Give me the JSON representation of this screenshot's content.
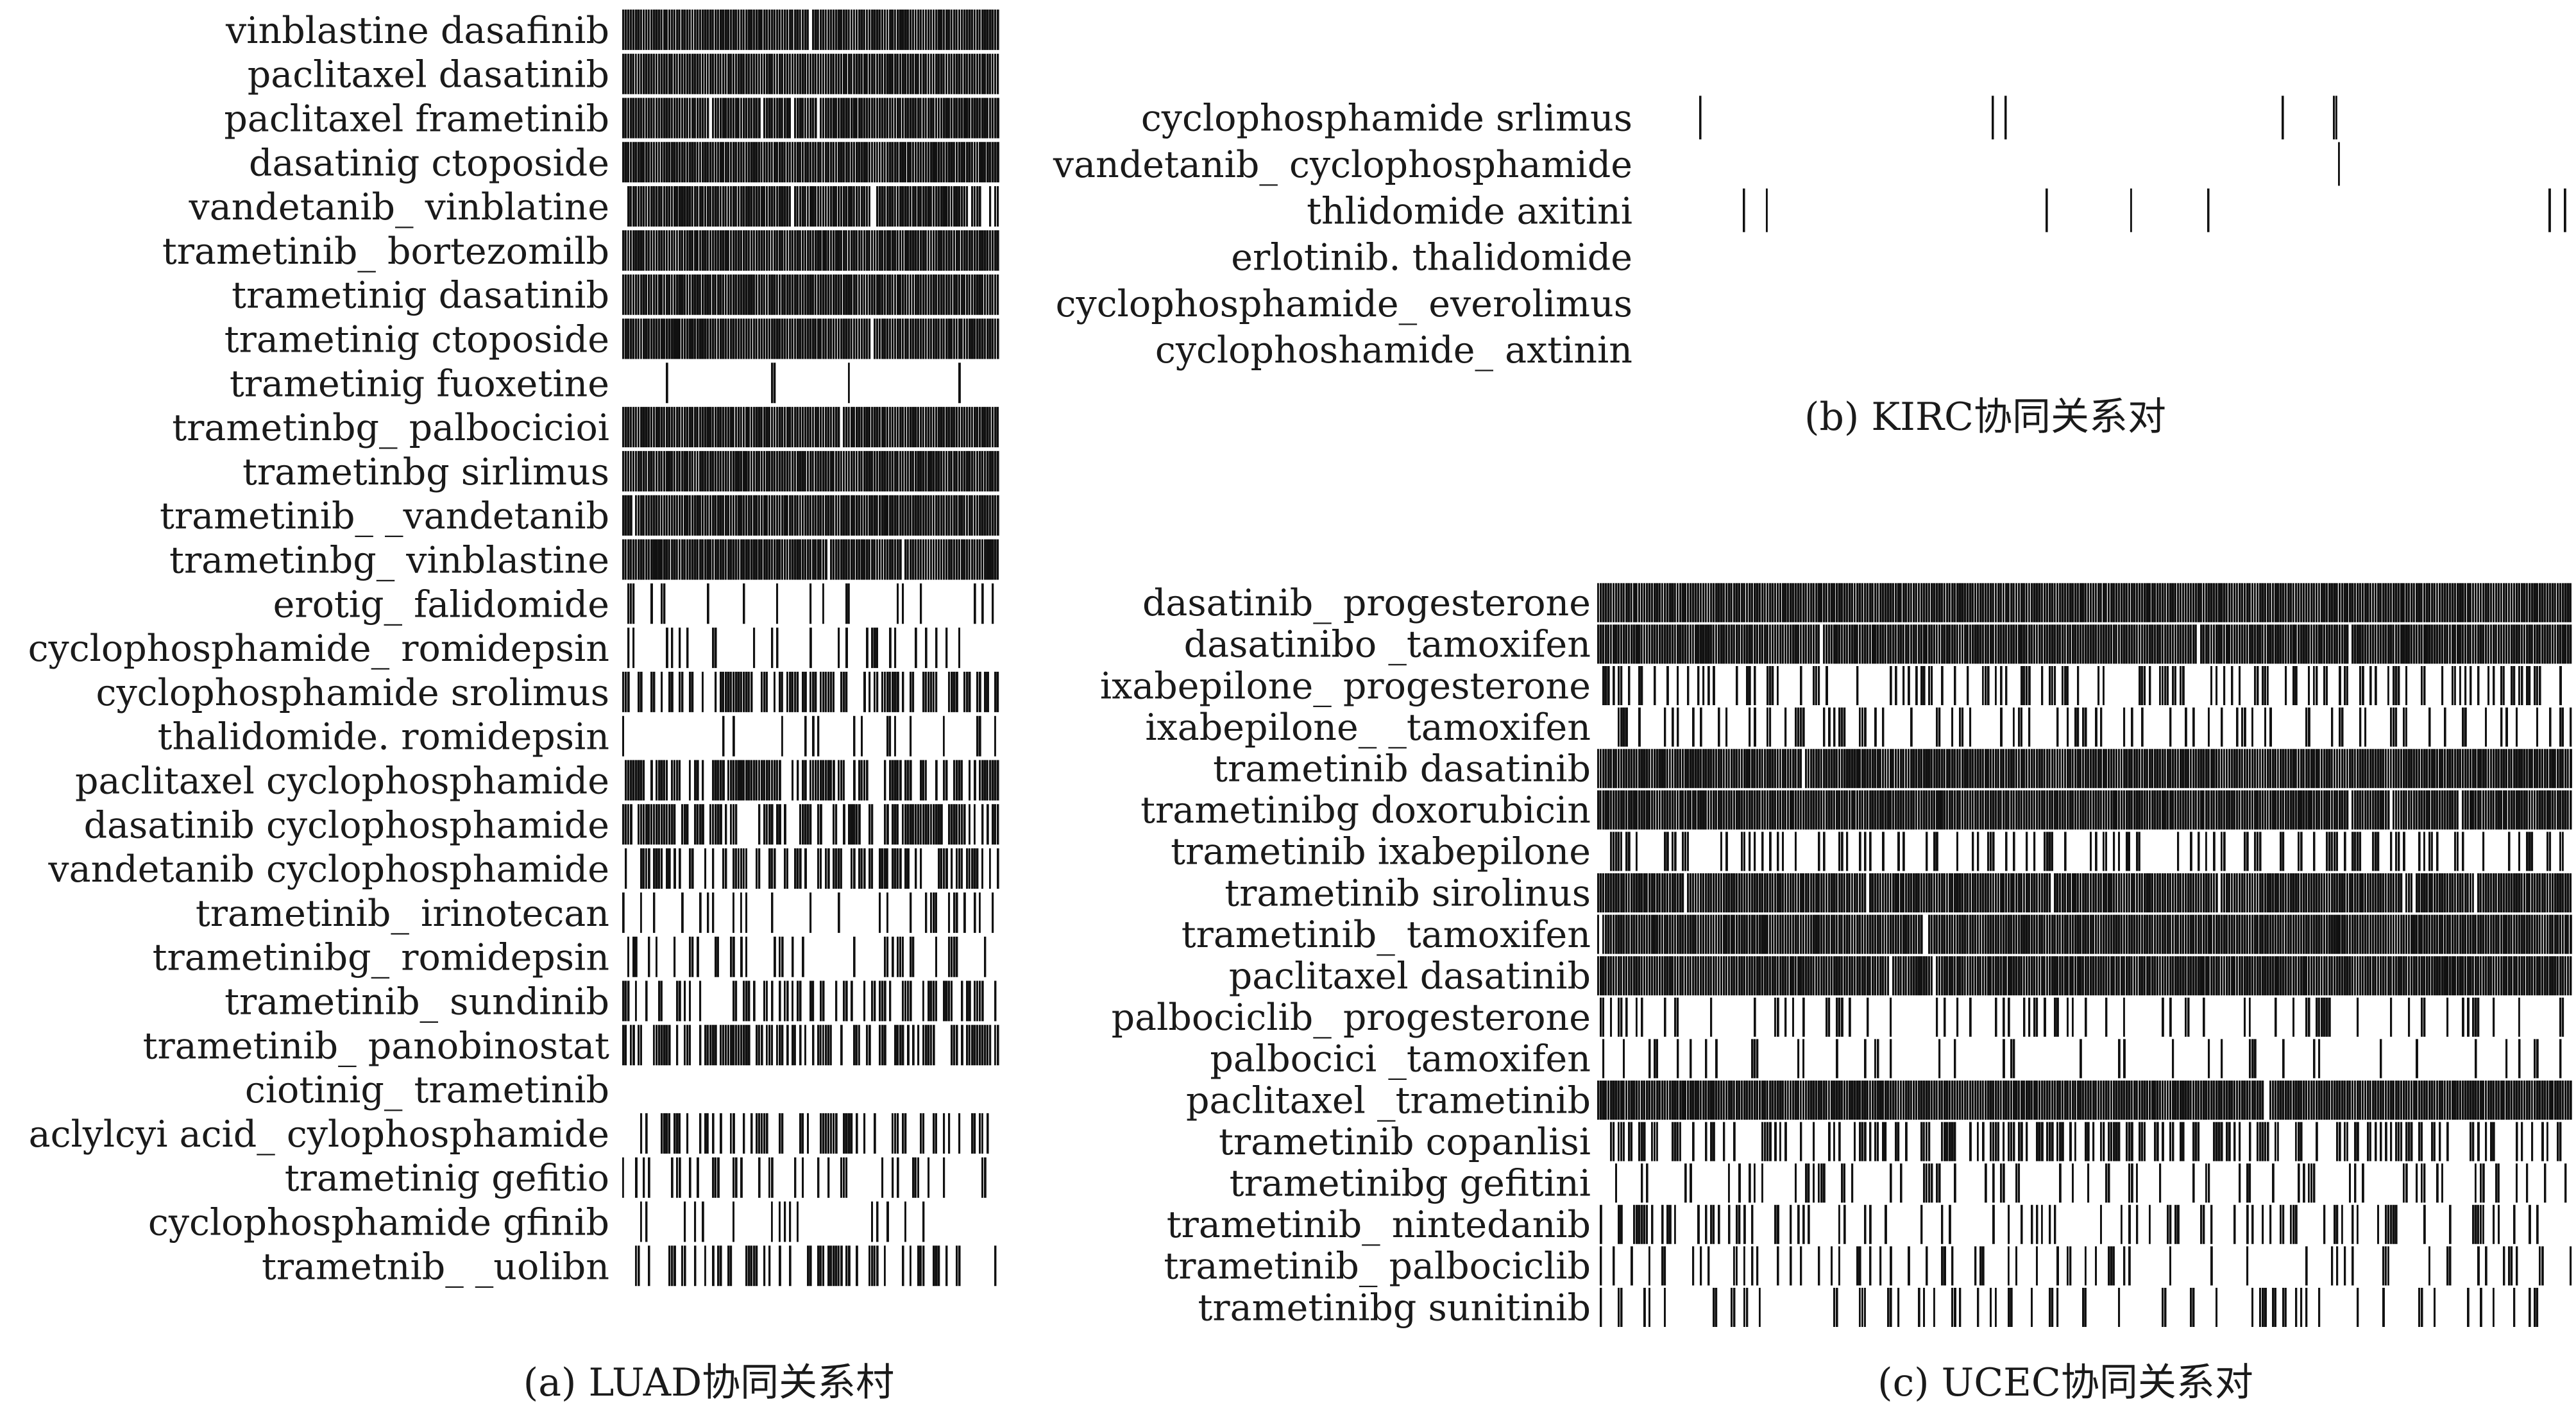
{
  "chart_data": [
    {
      "type": "heatmap",
      "caption": "(a) LUAD协同关系村",
      "row_labels": [
        "vinblastine dasafinib",
        "paclitaxel dasatinib",
        "paclitaxel frametinib",
        "dasatinig ctoposide",
        "vandetanib_ vinblatine",
        "trametinib_ bortezomilb",
        "trametinig dasatinib",
        "trametinig ctoposide",
        "trametinig fuoxetine",
        "trametinbg_ palbocicioi",
        "trametinbg sirlimus",
        "trametinib_ _vandetanib",
        "trametinbg_ vinblastine",
        "erotig_ falidomide",
        "cyclophosphamide_ romidepsin",
        "cyclophosphamide srolimus",
        "thalidomide. romidepsin",
        "paclitaxel cyclophosphamide",
        "dasatinib cyclophosphamide",
        "vandetanib cyclophosphamide",
        "trametinib_ irinotecan",
        "trametinibg_ romidepsin",
        "trametinib_ sundinib",
        "trametinib_ panobinostat",
        "ciotinig_ trametinib",
        "aclylcyi acid_ cylophosphamide",
        "trametinig gefitio",
        "cyclophosphamide gfinib",
        "trametnib_ _uolibn"
      ],
      "row_density": [
        0.92,
        0.96,
        0.93,
        0.9,
        0.86,
        0.95,
        0.93,
        0.94,
        0.08,
        0.93,
        0.94,
        0.93,
        0.94,
        0.14,
        0.2,
        0.55,
        0.12,
        0.6,
        0.6,
        0.55,
        0.22,
        0.3,
        0.38,
        0.62,
        0.04,
        0.4,
        0.18,
        0.12,
        0.3
      ]
    },
    {
      "type": "heatmap",
      "caption": "(b) KIRC协同关系对",
      "row_labels": [
        "cyclophosphamide srlimus",
        "vandetanib_ cyclophosphamide",
        "thlidomide axitini",
        "erlotinib. thalidomide",
        "cyclophosphamide_ everolimus",
        "cyclophoshamide_ axtinin"
      ],
      "row_density": [
        0.035,
        0.03,
        0.035,
        0.02,
        0.025,
        0.008
      ]
    },
    {
      "type": "heatmap",
      "caption": "(c) UCEC协同关系对",
      "row_labels": [
        "dasatinib_ progesterone",
        "dasatinibo _tamoxifen",
        "ixabepilone_ progesterone",
        "ixabepilone_ _tamoxifen",
        "trametinib dasatinib",
        "trametinibg doxorubicin",
        "trametinib ixabepilone",
        "trametinib sirolinus",
        "trametinib_ tamoxifen",
        "paclitaxel dasatinib",
        "palbociclib_ progesterone",
        "palbocici _tamoxifen",
        "paclitaxel _trametinib",
        "trametinib copanlisi",
        "trametinibg gefitini",
        "trametinib_ nintedanib",
        "trametinib_ palbociclib",
        "trametinibg sunitinib"
      ],
      "row_density": [
        0.9,
        0.93,
        0.35,
        0.3,
        0.93,
        0.95,
        0.3,
        0.93,
        0.93,
        0.93,
        0.2,
        0.15,
        0.96,
        0.45,
        0.2,
        0.25,
        0.25,
        0.2
      ]
    }
  ],
  "colors": {
    "ink": "#111111",
    "text": "#1a1a1a",
    "background": "#ffffff"
  }
}
